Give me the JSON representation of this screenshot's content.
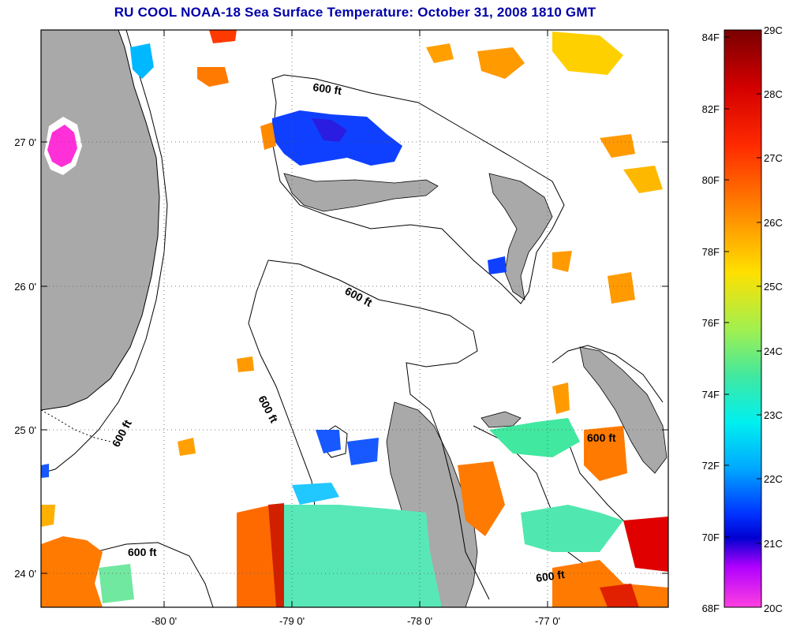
{
  "title": "RU COOL  NOAA-18  Sea Surface Temperature:  October 31, 2008 1810 GMT",
  "map": {
    "lon_labels": [
      "-80 0'",
      "-79 0'",
      "-78 0'",
      "-77 0'"
    ],
    "lat_labels": [
      "27 0'",
      "26 0'",
      "25 0'",
      "24 0'"
    ],
    "contour_label": "600 ft",
    "land_color": "#a9a9a9",
    "background_color": "#ffffff"
  },
  "colorbar": {
    "fahrenheit_labels": [
      "84F",
      "82F",
      "80F",
      "78F",
      "76F",
      "74F",
      "72F",
      "70F",
      "68F"
    ],
    "celsius_labels": [
      "29C",
      "28C",
      "27C",
      "26C",
      "25C",
      "24C",
      "23C",
      "22C",
      "21C",
      "20C"
    ],
    "gradient_colors": [
      "#7a0000",
      "#d40000",
      "#ff2a00",
      "#ff7a00",
      "#ffd200",
      "#c8f040",
      "#60e890",
      "#00f0f0",
      "#00a0ff",
      "#0040ff",
      "#0000e0",
      "#c000ff",
      "#ff40e0"
    ]
  }
}
